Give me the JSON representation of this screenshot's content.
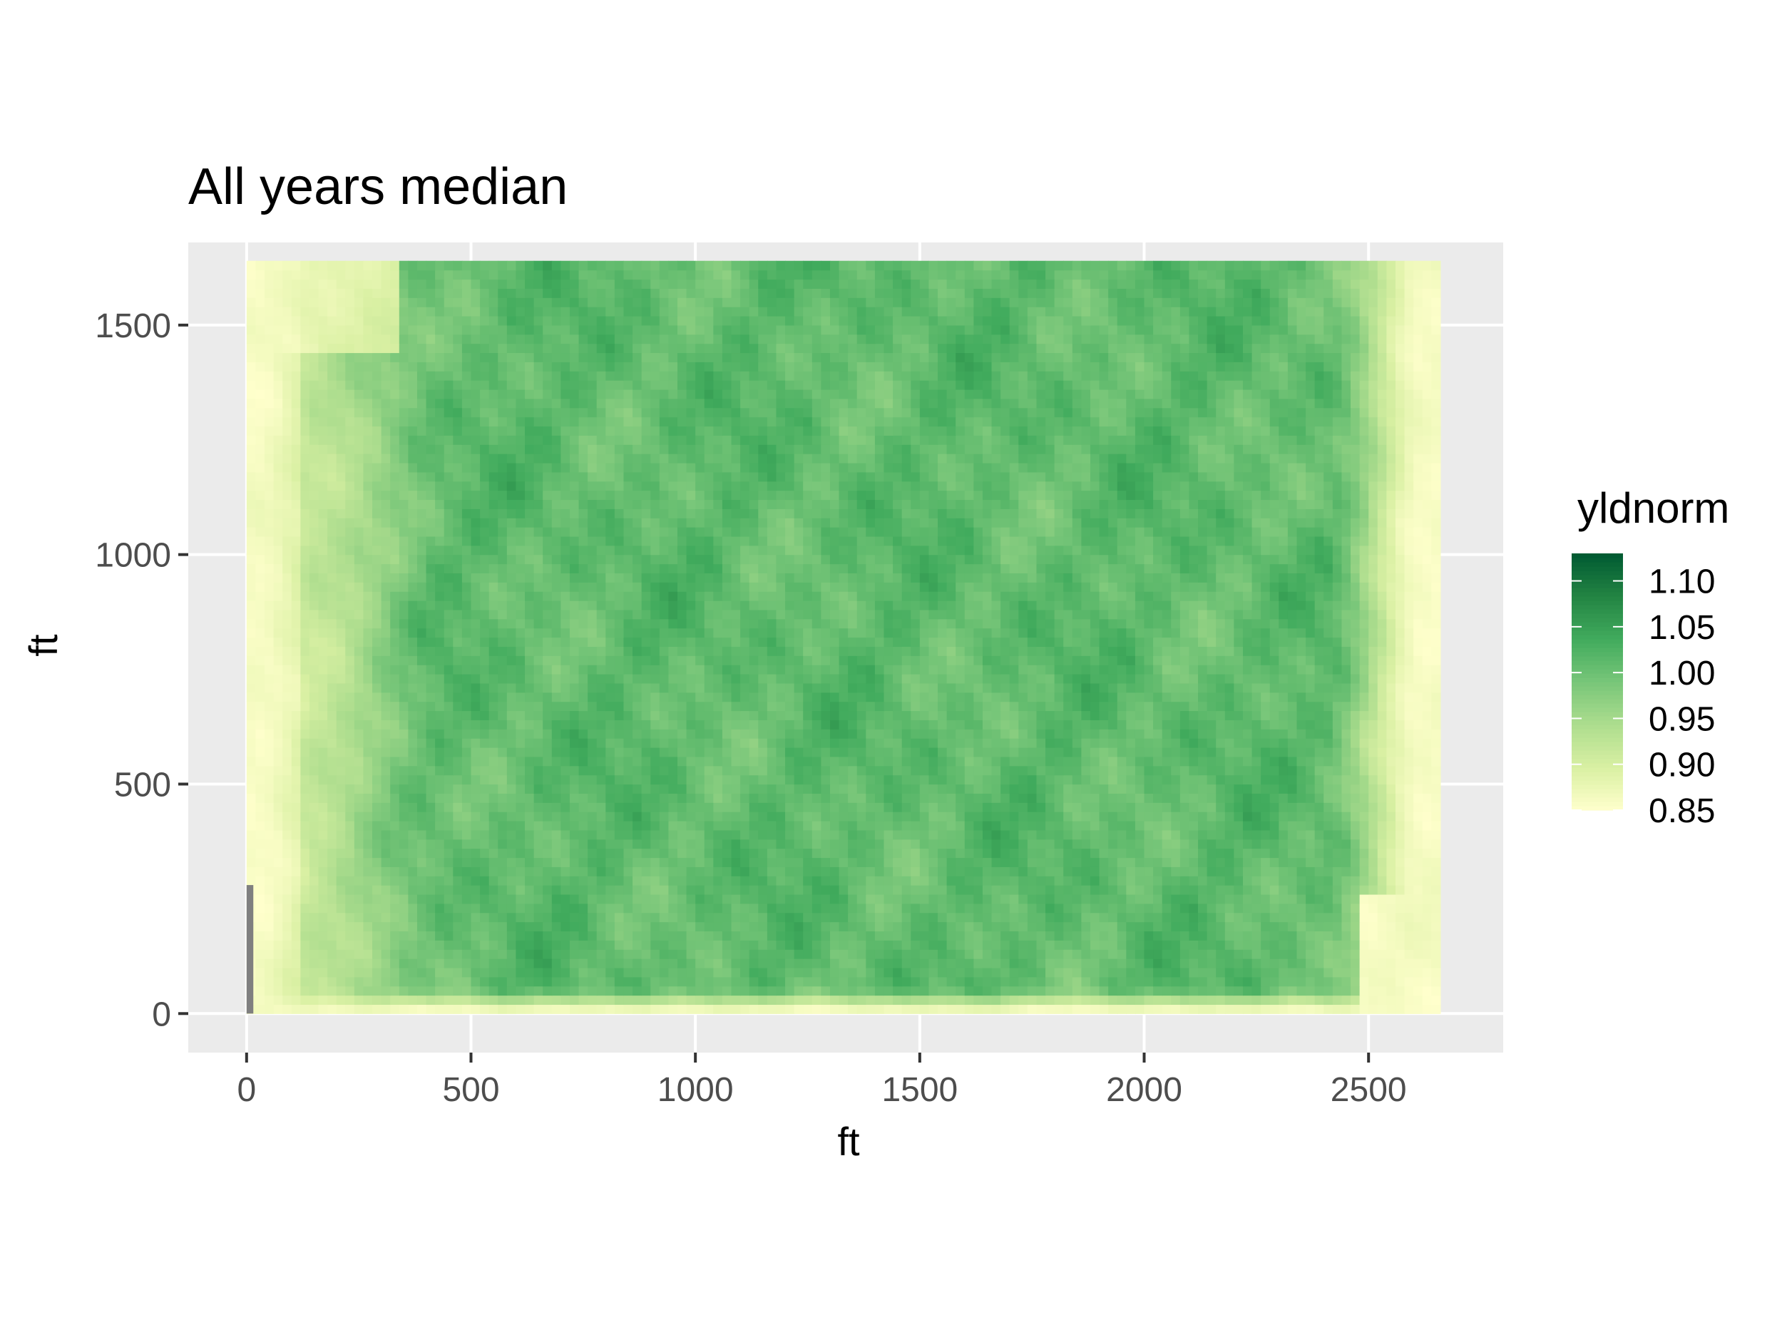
{
  "chart_data": {
    "type": "heatmap",
    "title": "All years median",
    "xlabel": "ft",
    "ylabel": "ft",
    "xlim": [
      -130,
      2800
    ],
    "ylim": [
      -85,
      1680
    ],
    "x_extent": [
      0,
      2660
    ],
    "y_extent": [
      0,
      1640
    ],
    "x_ticks": [
      0,
      500,
      1000,
      1500,
      2000,
      2500
    ],
    "x_tick_labels": [
      "0",
      "500",
      "1000",
      "1500",
      "2000",
      "2500"
    ],
    "y_ticks": [
      0,
      500,
      1000,
      1500
    ],
    "y_tick_labels": [
      "0",
      "500",
      "1000",
      "1500"
    ],
    "grid": true,
    "panel_background": "#ebebeb",
    "legend": {
      "title": "yldnorm",
      "position": "right",
      "breaks": [
        1.1,
        1.05,
        1.0,
        0.95,
        0.9,
        0.85
      ],
      "labels": [
        "1.10",
        "1.05",
        "1.00",
        "0.95",
        "0.90",
        "0.85"
      ],
      "range": [
        0.85,
        1.13
      ]
    },
    "palette": [
      "#ffffcc",
      "#d9f0a3",
      "#addd8e",
      "#78c679",
      "#41ab5d",
      "#238443",
      "#005a32"
    ],
    "na_color": "#7f7f7f",
    "na_strip": {
      "x": [
        0,
        15
      ],
      "y": [
        0,
        280
      ]
    },
    "grid_cells": {
      "nx": 133,
      "ny": 82,
      "cell_ft": 20
    },
    "field_profile": {
      "x_core": [
        450,
        2400
      ],
      "y_core": [
        60,
        1630
      ],
      "core_value": 1.01,
      "edge_value": 0.86,
      "left_transition_ft": 320,
      "right_transition_ft": 220,
      "patch_amplitude": 0.04
    }
  }
}
